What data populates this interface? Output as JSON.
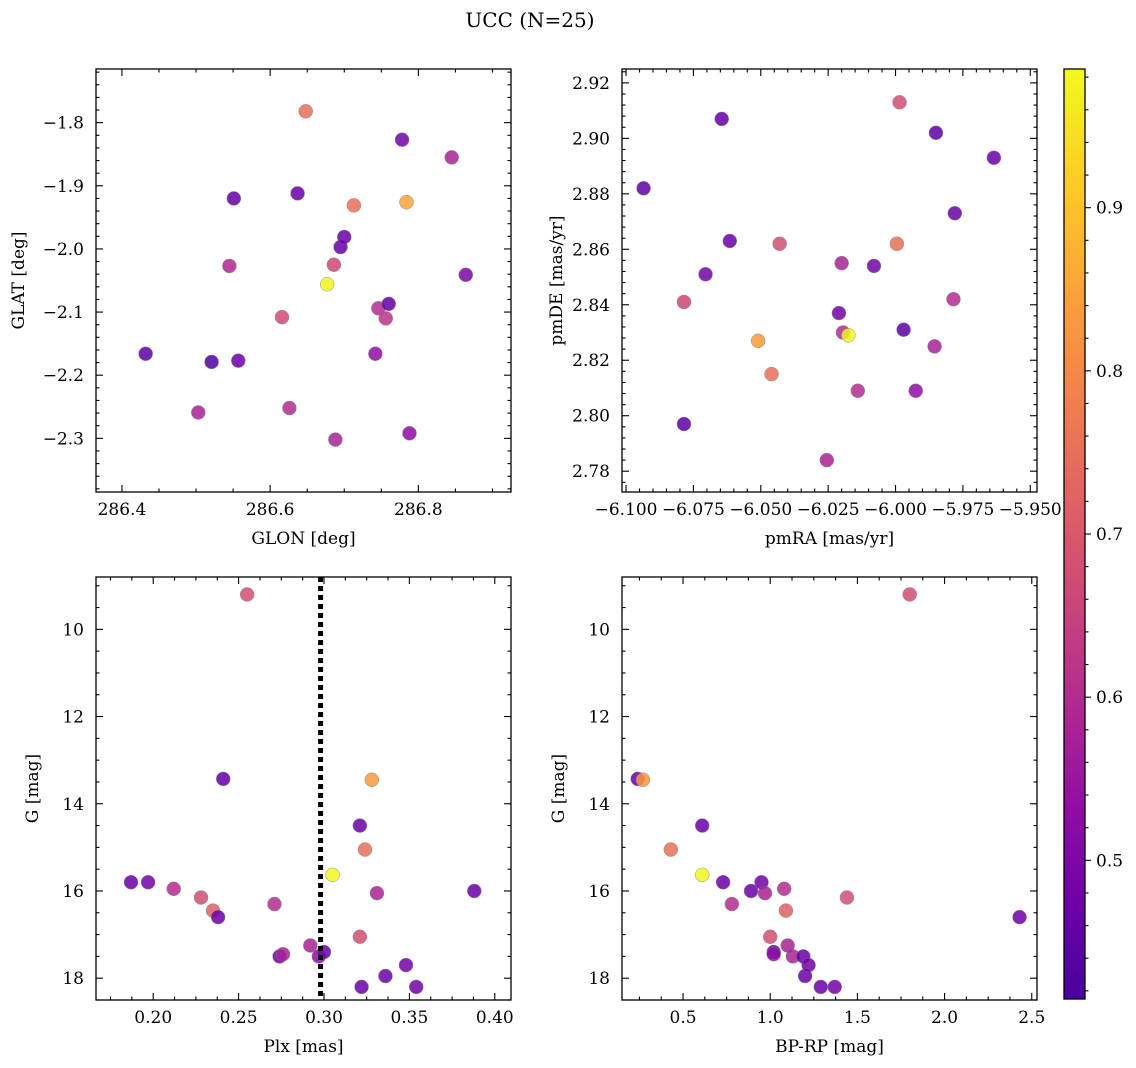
{
  "figure": {
    "title": "UCC (N=25)"
  },
  "colormap": {
    "name": "plasma",
    "min": 0.415,
    "max": 0.985,
    "ticks": [
      0.5,
      0.6,
      0.7,
      0.8,
      0.9
    ]
  },
  "chart_data": [
    {
      "id": "glon-glat",
      "type": "scatter",
      "xlabel": "GLON [deg]",
      "ylabel": "GLAT [deg]",
      "xlim": [
        286.365,
        286.925
      ],
      "ylim": [
        -2.385,
        -1.715
      ],
      "invert_y": false,
      "xticks": [
        286.4,
        286.6,
        286.8
      ],
      "xtick_labels": [
        "286.4",
        "286.6",
        "286.8"
      ],
      "yticks": [
        -2.3,
        -2.2,
        -2.1,
        -2.0,
        -1.9,
        -1.8
      ],
      "ytick_labels": [
        "−2.3",
        "−2.2",
        "−2.1",
        "−2.0",
        "−1.9",
        "−1.8"
      ],
      "points": [
        {
          "x": 286.432,
          "y": -2.166,
          "c": 0.45
        },
        {
          "x": 286.503,
          "y": -2.259,
          "c": 0.58
        },
        {
          "x": 286.521,
          "y": -2.179,
          "c": 0.43
        },
        {
          "x": 286.545,
          "y": -2.027,
          "c": 0.59
        },
        {
          "x": 286.551,
          "y": -1.92,
          "c": 0.46
        },
        {
          "x": 286.557,
          "y": -2.177,
          "c": 0.47
        },
        {
          "x": 286.616,
          "y": -2.108,
          "c": 0.67
        },
        {
          "x": 286.626,
          "y": -2.252,
          "c": 0.6
        },
        {
          "x": 286.637,
          "y": -1.912,
          "c": 0.47
        },
        {
          "x": 286.648,
          "y": -1.782,
          "c": 0.75
        },
        {
          "x": 286.677,
          "y": -2.056,
          "c": 0.98
        },
        {
          "x": 286.686,
          "y": -2.025,
          "c": 0.66
        },
        {
          "x": 286.688,
          "y": -2.302,
          "c": 0.58
        },
        {
          "x": 286.695,
          "y": -1.997,
          "c": 0.46
        },
        {
          "x": 286.7,
          "y": -1.981,
          "c": 0.47
        },
        {
          "x": 286.713,
          "y": -1.931,
          "c": 0.75
        },
        {
          "x": 286.742,
          "y": -2.166,
          "c": 0.53
        },
        {
          "x": 286.746,
          "y": -2.094,
          "c": 0.6
        },
        {
          "x": 286.756,
          "y": -2.11,
          "c": 0.62
        },
        {
          "x": 286.76,
          "y": -2.087,
          "c": 0.46
        },
        {
          "x": 286.778,
          "y": -1.827,
          "c": 0.48
        },
        {
          "x": 286.784,
          "y": -1.926,
          "c": 0.85
        },
        {
          "x": 286.788,
          "y": -2.292,
          "c": 0.53
        },
        {
          "x": 286.845,
          "y": -1.855,
          "c": 0.58
        },
        {
          "x": 286.864,
          "y": -2.041,
          "c": 0.5
        }
      ]
    },
    {
      "id": "pmra-pmde",
      "type": "scatter",
      "xlabel": "pmRA [mas/yr]",
      "ylabel": "pmDE [mas/yr]",
      "xlim": [
        -6.1015,
        -5.9475
      ],
      "ylim": [
        2.7725,
        2.925
      ],
      "invert_y": false,
      "xticks": [
        -6.1,
        -6.075,
        -6.05,
        -6.025,
        -6.0,
        -5.975,
        -5.95
      ],
      "xtick_labels": [
        "−6.100",
        "−6.075",
        "−6.050",
        "−6.025",
        "−6.000",
        "−5.975",
        "−5.950"
      ],
      "yticks": [
        2.78,
        2.8,
        2.82,
        2.84,
        2.86,
        2.88,
        2.9,
        2.92
      ],
      "ytick_labels": [
        "2.78",
        "2.80",
        "2.82",
        "2.84",
        "2.86",
        "2.88",
        "2.90",
        "2.92"
      ],
      "points": [
        {
          "x": -6.0935,
          "y": 2.882,
          "c": 0.45
        },
        {
          "x": -6.0785,
          "y": 2.797,
          "c": 0.45
        },
        {
          "x": -6.0785,
          "y": 2.841,
          "c": 0.66
        },
        {
          "x": -6.0705,
          "y": 2.851,
          "c": 0.48
        },
        {
          "x": -6.0645,
          "y": 2.907,
          "c": 0.46
        },
        {
          "x": -6.0615,
          "y": 2.863,
          "c": 0.47
        },
        {
          "x": -6.051,
          "y": 2.827,
          "c": 0.83
        },
        {
          "x": -6.046,
          "y": 2.815,
          "c": 0.75
        },
        {
          "x": -6.043,
          "y": 2.862,
          "c": 0.68
        },
        {
          "x": -6.0255,
          "y": 2.784,
          "c": 0.58
        },
        {
          "x": -6.021,
          "y": 2.837,
          "c": 0.48
        },
        {
          "x": -6.02,
          "y": 2.855,
          "c": 0.58
        },
        {
          "x": -6.0195,
          "y": 2.83,
          "c": 0.6
        },
        {
          "x": -6.0175,
          "y": 2.829,
          "c": 0.98
        },
        {
          "x": -6.014,
          "y": 2.809,
          "c": 0.6
        },
        {
          "x": -6.008,
          "y": 2.854,
          "c": 0.48
        },
        {
          "x": -5.9995,
          "y": 2.862,
          "c": 0.75
        },
        {
          "x": -5.9985,
          "y": 2.913,
          "c": 0.68
        },
        {
          "x": -5.997,
          "y": 2.831,
          "c": 0.45
        },
        {
          "x": -5.9925,
          "y": 2.809,
          "c": 0.53
        },
        {
          "x": -5.9855,
          "y": 2.825,
          "c": 0.58
        },
        {
          "x": -5.985,
          "y": 2.902,
          "c": 0.45
        },
        {
          "x": -5.9785,
          "y": 2.842,
          "c": 0.6
        },
        {
          "x": -5.978,
          "y": 2.873,
          "c": 0.47
        },
        {
          "x": -5.9635,
          "y": 2.893,
          "c": 0.47
        }
      ]
    },
    {
      "id": "plx-g",
      "type": "scatter",
      "xlabel": "Plx [mas]",
      "ylabel": "G [mag]",
      "xlim": [
        0.1665,
        0.4095
      ],
      "ylim": [
        18.5,
        8.8
      ],
      "invert_y": true,
      "xticks": [
        0.2,
        0.25,
        0.3,
        0.35,
        0.4
      ],
      "xtick_labels": [
        "0.20",
        "0.25",
        "0.30",
        "0.35",
        "0.40"
      ],
      "yticks": [
        10,
        12,
        14,
        16,
        18
      ],
      "ytick_labels": [
        "10",
        "12",
        "14",
        "16",
        "18"
      ],
      "vline": 0.298,
      "points": [
        {
          "x": 0.187,
          "y": 15.8,
          "c": 0.47
        },
        {
          "x": 0.197,
          "y": 15.8,
          "c": 0.48
        },
        {
          "x": 0.212,
          "y": 15.95,
          "c": 0.6
        },
        {
          "x": 0.228,
          "y": 16.15,
          "c": 0.68
        },
        {
          "x": 0.235,
          "y": 16.45,
          "c": 0.72
        },
        {
          "x": 0.238,
          "y": 16.6,
          "c": 0.47
        },
        {
          "x": 0.241,
          "y": 13.43,
          "c": 0.46
        },
        {
          "x": 0.255,
          "y": 9.2,
          "c": 0.68
        },
        {
          "x": 0.271,
          "y": 16.3,
          "c": 0.6
        },
        {
          "x": 0.274,
          "y": 17.5,
          "c": 0.47
        },
        {
          "x": 0.276,
          "y": 17.45,
          "c": 0.58
        },
        {
          "x": 0.292,
          "y": 17.25,
          "c": 0.58
        },
        {
          "x": 0.297,
          "y": 17.5,
          "c": 0.53
        },
        {
          "x": 0.3,
          "y": 17.4,
          "c": 0.47
        },
        {
          "x": 0.305,
          "y": 15.63,
          "c": 0.98
        },
        {
          "x": 0.321,
          "y": 14.5,
          "c": 0.47
        },
        {
          "x": 0.321,
          "y": 17.05,
          "c": 0.68
        },
        {
          "x": 0.322,
          "y": 18.2,
          "c": 0.47
        },
        {
          "x": 0.324,
          "y": 15.05,
          "c": 0.75
        },
        {
          "x": 0.328,
          "y": 13.45,
          "c": 0.83
        },
        {
          "x": 0.331,
          "y": 16.05,
          "c": 0.58
        },
        {
          "x": 0.336,
          "y": 17.95,
          "c": 0.47
        },
        {
          "x": 0.348,
          "y": 17.7,
          "c": 0.48
        },
        {
          "x": 0.354,
          "y": 18.2,
          "c": 0.48
        },
        {
          "x": 0.388,
          "y": 16.0,
          "c": 0.47
        }
      ]
    },
    {
      "id": "bprp-g",
      "type": "scatter",
      "xlabel": "BP-RP [mag]",
      "ylabel": "G [mag]",
      "xlim": [
        0.15,
        2.53
      ],
      "ylim": [
        18.5,
        8.8
      ],
      "invert_y": true,
      "xticks": [
        0.5,
        1.0,
        1.5,
        2.0,
        2.5
      ],
      "xtick_labels": [
        "0.5",
        "1.0",
        "1.5",
        "2.0",
        "2.5"
      ],
      "yticks": [
        10,
        12,
        14,
        16,
        18
      ],
      "ytick_labels": [
        "10",
        "12",
        "14",
        "16",
        "18"
      ],
      "points": [
        {
          "x": 0.24,
          "y": 13.43,
          "c": 0.46
        },
        {
          "x": 0.27,
          "y": 13.45,
          "c": 0.83
        },
        {
          "x": 0.43,
          "y": 15.05,
          "c": 0.75
        },
        {
          "x": 0.61,
          "y": 14.5,
          "c": 0.47
        },
        {
          "x": 0.61,
          "y": 15.63,
          "c": 0.98
        },
        {
          "x": 0.73,
          "y": 15.8,
          "c": 0.47
        },
        {
          "x": 0.78,
          "y": 16.3,
          "c": 0.6
        },
        {
          "x": 0.89,
          "y": 16.0,
          "c": 0.47
        },
        {
          "x": 0.95,
          "y": 15.8,
          "c": 0.48
        },
        {
          "x": 0.97,
          "y": 16.05,
          "c": 0.58
        },
        {
          "x": 1.0,
          "y": 17.05,
          "c": 0.68
        },
        {
          "x": 1.02,
          "y": 17.4,
          "c": 0.47
        },
        {
          "x": 1.02,
          "y": 17.45,
          "c": 0.53
        },
        {
          "x": 1.08,
          "y": 15.95,
          "c": 0.6
        },
        {
          "x": 1.09,
          "y": 16.45,
          "c": 0.72
        },
        {
          "x": 1.1,
          "y": 17.25,
          "c": 0.58
        },
        {
          "x": 1.13,
          "y": 17.5,
          "c": 0.58
        },
        {
          "x": 1.19,
          "y": 17.5,
          "c": 0.47
        },
        {
          "x": 1.2,
          "y": 17.95,
          "c": 0.47
        },
        {
          "x": 1.22,
          "y": 17.7,
          "c": 0.48
        },
        {
          "x": 1.29,
          "y": 18.2,
          "c": 0.47
        },
        {
          "x": 1.37,
          "y": 18.2,
          "c": 0.48
        },
        {
          "x": 1.44,
          "y": 16.15,
          "c": 0.68
        },
        {
          "x": 1.8,
          "y": 9.2,
          "c": 0.68
        },
        {
          "x": 2.43,
          "y": 16.6,
          "c": 0.47
        }
      ]
    }
  ]
}
